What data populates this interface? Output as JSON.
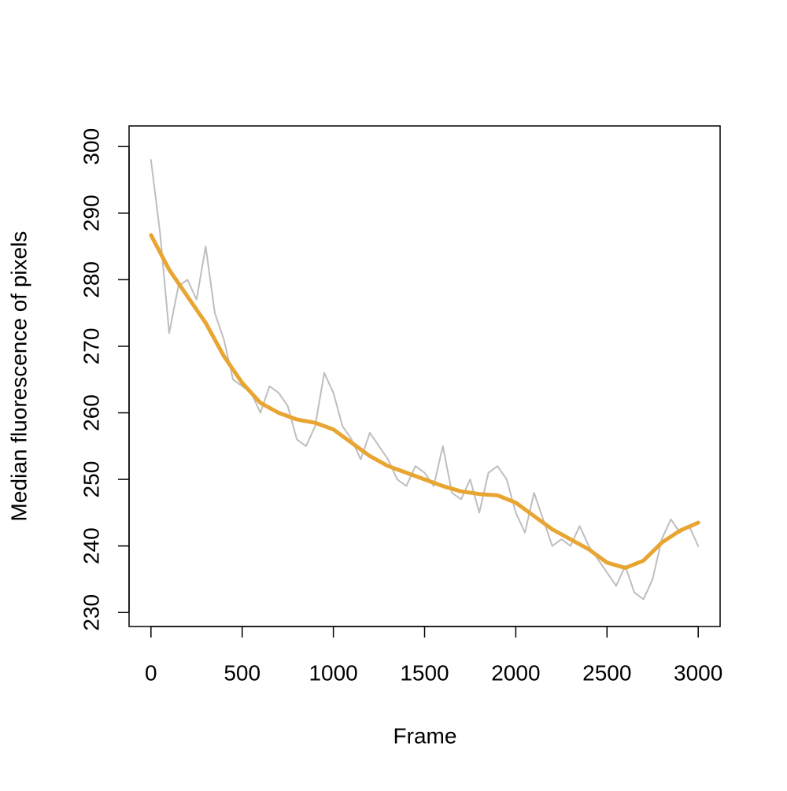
{
  "chart_data": {
    "type": "line",
    "x_label": "Frame",
    "y_label": "Median fluorescence of pixels",
    "xlim": [
      -120,
      3120
    ],
    "ylim": [
      227.9,
      303.1
    ],
    "xticks": [
      0,
      500,
      1000,
      1500,
      2000,
      2500,
      3000
    ],
    "yticks": [
      230,
      240,
      250,
      260,
      270,
      280,
      290,
      300
    ],
    "grid": false,
    "series": [
      {
        "color": "#bebebe",
        "width": 2,
        "x": [
          0,
          50,
          100,
          150,
          200,
          250,
          300,
          350,
          400,
          450,
          500,
          550,
          600,
          650,
          700,
          750,
          800,
          850,
          900,
          950,
          1000,
          1050,
          1100,
          1150,
          1200,
          1250,
          1300,
          1350,
          1400,
          1450,
          1500,
          1550,
          1600,
          1650,
          1700,
          1750,
          1800,
          1850,
          1900,
          1950,
          2000,
          2050,
          2100,
          2150,
          2200,
          2250,
          2300,
          2350,
          2400,
          2450,
          2500,
          2550,
          2600,
          2650,
          2700,
          2750,
          2800,
          2850,
          2900,
          2950,
          3000
        ],
        "values": [
          298,
          287,
          272,
          279,
          280,
          277,
          285,
          275,
          271,
          265,
          264,
          263,
          260,
          264,
          263,
          261,
          256,
          255,
          258,
          266,
          263,
          258,
          256,
          253,
          257,
          255,
          253,
          250,
          249,
          252,
          251,
          249,
          255,
          248,
          247,
          250,
          245,
          251,
          252,
          250,
          245,
          242,
          248,
          244,
          240,
          241,
          240,
          243,
          240,
          238,
          236,
          234,
          237,
          233,
          232,
          235,
          241,
          244,
          242,
          243,
          240
        ]
      },
      {
        "color": "#e8a532",
        "width": 5,
        "x": [
          0,
          100,
          200,
          300,
          400,
          500,
          600,
          700,
          800,
          900,
          1000,
          1100,
          1200,
          1300,
          1400,
          1500,
          1600,
          1700,
          1800,
          1900,
          2000,
          2100,
          2200,
          2300,
          2400,
          2500,
          2600,
          2700,
          2800,
          2900,
          3000
        ],
        "values": [
          286.7,
          281.5,
          277.5,
          273.5,
          268.5,
          264.5,
          261.5,
          260,
          259,
          258.5,
          257.5,
          255.5,
          253.5,
          252,
          251,
          250,
          249,
          248.2,
          247.8,
          247.6,
          246.5,
          244.5,
          242.5,
          241,
          239.5,
          237.5,
          236.7,
          237.8,
          240.5,
          242.3,
          243.5
        ]
      }
    ]
  }
}
